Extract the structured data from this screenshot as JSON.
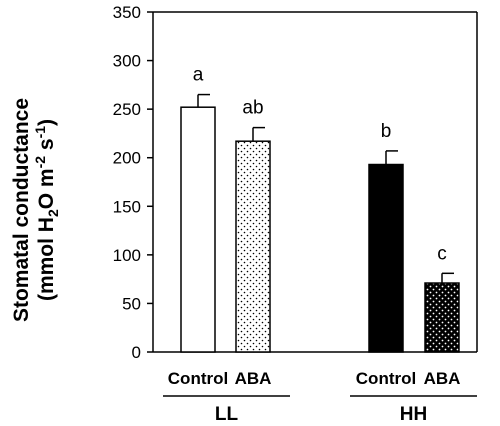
{
  "chart_data": {
    "type": "bar",
    "title": "",
    "xlabel": "",
    "ylabel_line1": "Stomatal conductance",
    "ylabel_line2": {
      "p1": "(mmol H",
      "sub1": "2",
      "p2": "O m",
      "sup1": "-2",
      "p3": " s",
      "sup2": "-1",
      "p4": ")"
    },
    "ylim": [
      0,
      350
    ],
    "yticks": [
      0,
      50,
      100,
      150,
      200,
      250,
      300,
      350
    ],
    "grid": false,
    "categories": [
      "Control",
      "ABA",
      "Control",
      "ABA"
    ],
    "groups": [
      {
        "label": "LL",
        "members": [
          0,
          1
        ]
      },
      {
        "label": "HH",
        "members": [
          2,
          3
        ]
      }
    ],
    "values": [
      252,
      217,
      193,
      71
    ],
    "errors": [
      13,
      14,
      14,
      10
    ],
    "significance": [
      "a",
      "ab",
      "b",
      "c"
    ],
    "fills": [
      "white",
      "dotted-light",
      "black",
      "dotted-dark"
    ]
  },
  "colors": {
    "axis": "#000000",
    "bar_black": "#000000",
    "bar_white": "#ffffff"
  }
}
